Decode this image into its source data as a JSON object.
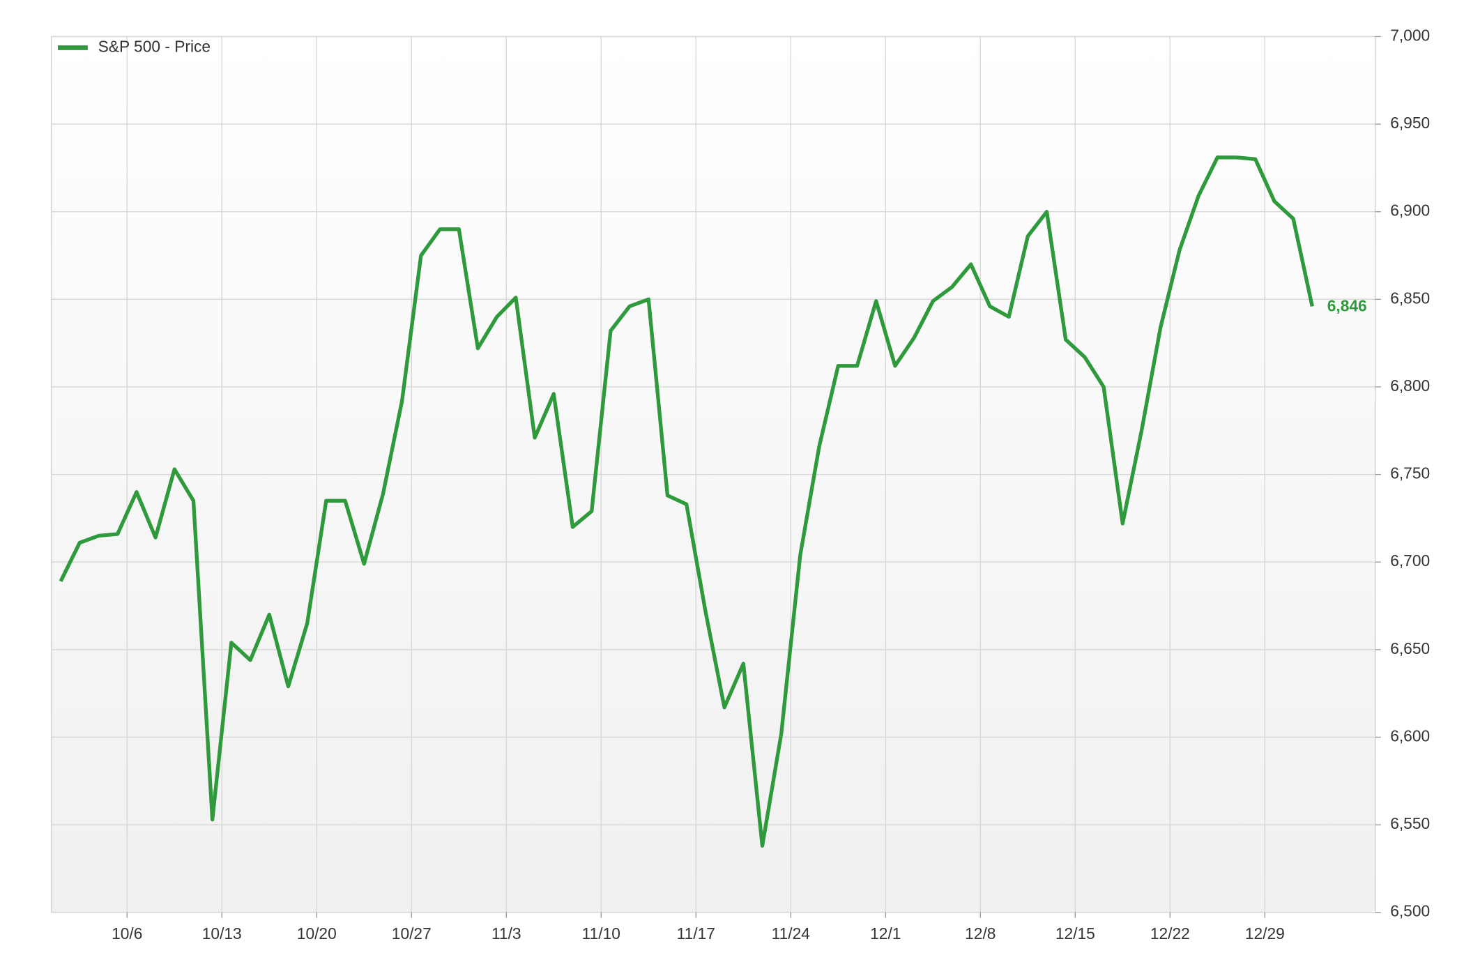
{
  "chart_data": {
    "type": "line",
    "categories": [
      "9/30",
      "10/1",
      "10/2",
      "10/3",
      "10/6",
      "10/7",
      "10/8",
      "10/9",
      "10/10",
      "10/13",
      "10/14",
      "10/15",
      "10/16",
      "10/17",
      "10/20",
      "10/21",
      "10/22",
      "10/23",
      "10/24",
      "10/27",
      "10/28",
      "10/29",
      "10/30",
      "10/31",
      "11/3",
      "11/4",
      "11/5",
      "11/6",
      "11/7",
      "11/10",
      "11/11",
      "11/12",
      "11/13",
      "11/14",
      "11/17",
      "11/18",
      "11/19",
      "11/20",
      "11/21",
      "11/24",
      "11/25",
      "11/26",
      "11/27",
      "11/28",
      "12/1",
      "12/2",
      "12/3",
      "12/4",
      "12/5",
      "12/8",
      "12/9",
      "12/10",
      "12/11",
      "12/12",
      "12/15",
      "12/16",
      "12/17",
      "12/18",
      "12/19",
      "12/22",
      "12/23",
      "12/24",
      "12/25",
      "12/26",
      "12/29",
      "12/30",
      "12/31"
    ],
    "series": [
      {
        "name": "S&P 500 - Price",
        "color": "#2f9a3c",
        "values": [
          6689,
          6711,
          6715,
          6716,
          6740,
          6714,
          6753,
          6735,
          6553,
          6654,
          6644,
          6670,
          6629,
          6665,
          6735,
          6735,
          6699,
          6739,
          6792,
          6875,
          6890,
          6890,
          6822,
          6840,
          6851,
          6771,
          6796,
          6720,
          6729,
          6832,
          6846,
          6850,
          6738,
          6733,
          6672,
          6617,
          6642,
          6538,
          6602,
          6704,
          6766,
          6812,
          6812,
          6849,
          6812,
          6828,
          6849,
          6857,
          6870,
          6846,
          6840,
          6886,
          6900,
          6827,
          6817,
          6800,
          6722,
          6775,
          6834,
          6878,
          6909,
          6931,
          6931,
          6930,
          6906,
          6896,
          6846
        ],
        "value_labels": [
          null,
          null,
          null,
          null,
          null,
          null,
          null,
          null,
          null,
          null,
          null,
          null,
          null,
          null,
          null,
          null,
          null,
          null,
          null,
          null,
          null,
          null,
          null,
          null,
          null,
          null,
          null,
          null,
          null,
          null,
          null,
          null,
          null,
          null,
          null,
          null,
          null,
          null,
          null,
          null,
          null,
          null,
          null,
          null,
          null,
          null,
          null,
          null,
          null,
          null,
          null,
          null,
          null,
          null,
          null,
          null,
          null,
          null,
          null,
          null,
          null,
          null,
          null,
          null,
          null,
          null,
          "6,846"
        ]
      }
    ],
    "xticks": [
      "10/6",
      "10/13",
      "10/20",
      "10/27",
      "11/3",
      "11/10",
      "11/17",
      "11/24",
      "12/1",
      "12/8",
      "12/15",
      "12/22",
      "12/29"
    ],
    "ylim": [
      6500,
      7000
    ],
    "yticks": [
      {
        "value": 6500,
        "label": "6,500"
      },
      {
        "value": 6550,
        "label": "6,550"
      },
      {
        "value": 6600,
        "label": "6,600"
      },
      {
        "value": 6650,
        "label": "6,650"
      },
      {
        "value": 6700,
        "label": "6,700"
      },
      {
        "value": 6750,
        "label": "6,750"
      },
      {
        "value": 6800,
        "label": "6,800"
      },
      {
        "value": 6850,
        "label": "6,850"
      },
      {
        "value": 6900,
        "label": "6,900"
      },
      {
        "value": 6950,
        "label": "6,950"
      },
      {
        "value": 7000,
        "label": "7,000"
      }
    ],
    "grid": true,
    "legend": "top-left"
  }
}
